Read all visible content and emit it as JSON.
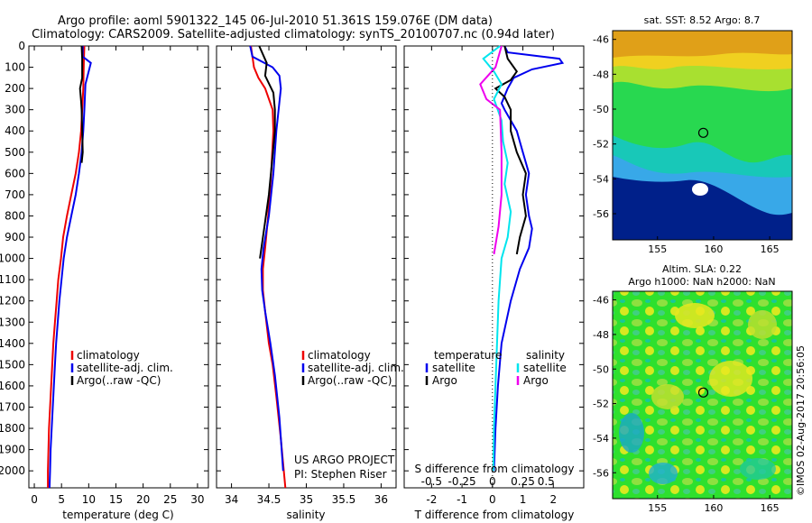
{
  "title_line1": "Argo profile: aoml 5901322_145 06-Jul-2010 51.361S 159.076E (DM data)",
  "title_line2": "Climatology: CARS2009. Satellite-adjusted climatology: synTS_20100707.nc (0.94d later)",
  "stamp": "©IMOS 02-Aug-2017 20:56:05",
  "colors": {
    "climatology": "#ee0000",
    "satellite": "#0000ee",
    "argo": "#000000",
    "sal_satellite": "#00e5ee",
    "sal_argo": "#ee00ee"
  },
  "chart_data": [
    {
      "type": "line",
      "xlabel": "temperature (deg C)",
      "ylabel": "",
      "xlim": [
        -1,
        32
      ],
      "ylim": [
        2080,
        0
      ],
      "xticks": [
        0,
        5,
        10,
        15,
        20,
        25,
        30
      ],
      "yticks": [
        0,
        100,
        200,
        300,
        400,
        500,
        600,
        700,
        800,
        900,
        1000,
        1100,
        1200,
        1300,
        1400,
        1500,
        1600,
        1700,
        1800,
        1900,
        2000
      ],
      "legend": [
        "climatology",
        "satellite-adj. clim.",
        "Argo(..raw -QC)"
      ],
      "legend_position": "lower-middle",
      "series": [
        {
          "name": "climatology",
          "color": "#ee0000",
          "points": [
            [
              9.2,
              0
            ],
            [
              9.1,
              80
            ],
            [
              9.0,
              200
            ],
            [
              8.8,
              300
            ],
            [
              8.6,
              400
            ],
            [
              8.2,
              500
            ],
            [
              7.6,
              600
            ],
            [
              6.8,
              700
            ],
            [
              6.0,
              800
            ],
            [
              5.3,
              900
            ],
            [
              4.9,
              1000
            ],
            [
              4.4,
              1100
            ],
            [
              4.1,
              1200
            ],
            [
              3.8,
              1300
            ],
            [
              3.5,
              1400
            ],
            [
              3.3,
              1500
            ],
            [
              3.1,
              1600
            ],
            [
              2.9,
              1700
            ],
            [
              2.7,
              1800
            ],
            [
              2.6,
              1900
            ],
            [
              2.5,
              2000
            ],
            [
              2.5,
              2080
            ]
          ]
        },
        {
          "name": "satellite-adj. clim.",
          "color": "#0000ee",
          "points": [
            [
              8.9,
              0
            ],
            [
              8.9,
              50
            ],
            [
              10.4,
              80
            ],
            [
              10.1,
              110
            ],
            [
              9.4,
              180
            ],
            [
              9.2,
              300
            ],
            [
              9.0,
              400
            ],
            [
              8.7,
              500
            ],
            [
              8.2,
              600
            ],
            [
              7.6,
              700
            ],
            [
              6.8,
              800
            ],
            [
              6.0,
              900
            ],
            [
              5.4,
              1000
            ],
            [
              5.0,
              1100
            ],
            [
              4.6,
              1200
            ],
            [
              4.3,
              1300
            ],
            [
              4.0,
              1400
            ],
            [
              3.8,
              1500
            ],
            [
              3.6,
              1600
            ],
            [
              3.4,
              1700
            ],
            [
              3.2,
              1800
            ],
            [
              3.0,
              1900
            ],
            [
              2.9,
              2000
            ],
            [
              2.8,
              2080
            ]
          ]
        },
        {
          "name": "Argo(..raw -QC)",
          "color": "#000000",
          "points": [
            [
              8.7,
              0
            ],
            [
              8.8,
              60
            ],
            [
              8.8,
              150
            ],
            [
              8.4,
              200
            ],
            [
              8.6,
              260
            ],
            [
              8.7,
              300
            ],
            [
              8.8,
              400
            ],
            [
              8.9,
              500
            ],
            [
              8.7,
              550
            ]
          ]
        }
      ]
    },
    {
      "type": "line",
      "xlabel": "salinity",
      "xlim": [
        33.8,
        36.2
      ],
      "ylim": [
        2080,
        0
      ],
      "xticks": [
        34,
        34.5,
        35,
        35.5,
        36
      ],
      "legend": [
        "climatology",
        "satellite-adj. clim.",
        "Argo(..raw -QC)"
      ],
      "legend_position": "lower-right",
      "annotation": [
        "US ARGO PROJECT",
        "PI: Stephen Riser"
      ],
      "series": [
        {
          "name": "climatology",
          "color": "#ee0000",
          "points": [
            [
              34.26,
              0
            ],
            [
              34.3,
              100
            ],
            [
              34.36,
              150
            ],
            [
              34.45,
              200
            ],
            [
              34.55,
              300
            ],
            [
              34.56,
              400
            ],
            [
              34.53,
              600
            ],
            [
              34.49,
              800
            ],
            [
              34.45,
              950
            ],
            [
              34.42,
              1050
            ],
            [
              34.42,
              1150
            ],
            [
              34.45,
              1250
            ],
            [
              34.5,
              1400
            ],
            [
              34.55,
              1500
            ],
            [
              34.6,
              1650
            ],
            [
              34.66,
              1850
            ],
            [
              34.72,
              2080
            ]
          ]
        },
        {
          "name": "satellite-adj. clim.",
          "color": "#0000ee",
          "points": [
            [
              34.25,
              0
            ],
            [
              34.28,
              50
            ],
            [
              34.55,
              100
            ],
            [
              34.64,
              140
            ],
            [
              34.66,
              200
            ],
            [
              34.63,
              300
            ],
            [
              34.6,
              400
            ],
            [
              34.56,
              600
            ],
            [
              34.5,
              800
            ],
            [
              34.43,
              950
            ],
            [
              34.4,
              1050
            ],
            [
              34.41,
              1150
            ],
            [
              34.45,
              1250
            ],
            [
              34.52,
              1400
            ],
            [
              34.58,
              1550
            ],
            [
              34.64,
              1750
            ],
            [
              34.68,
              1950
            ],
            [
              34.69,
              2000
            ]
          ]
        },
        {
          "name": "Argo(..raw -QC)",
          "color": "#000000",
          "points": [
            [
              34.37,
              0
            ],
            [
              34.47,
              80
            ],
            [
              34.45,
              140
            ],
            [
              34.56,
              220
            ],
            [
              34.58,
              300
            ],
            [
              34.58,
              400
            ],
            [
              34.54,
              550
            ],
            [
              34.5,
              700
            ],
            [
              34.44,
              850
            ],
            [
              34.38,
              1000
            ]
          ]
        }
      ]
    },
    {
      "type": "line",
      "xlabel": "T difference from climatology",
      "xlabel_top": "S difference from climatology",
      "xlim": [
        -2.9,
        3.0
      ],
      "ylim": [
        2080,
        0
      ],
      "xticks": [
        -2,
        -1,
        0,
        1,
        2
      ],
      "xticks_top": [
        "-0.5",
        "-0.25",
        "0",
        "0.25",
        "0.5"
      ],
      "legend": [
        "temperature",
        "salinity",
        "satellite",
        "Argo",
        "satellite",
        "Argo"
      ],
      "legend_position": "lower-middle",
      "series": [
        {
          "name": "T satellite",
          "color": "#0000ee",
          "points": [
            [
              0.4,
              0
            ],
            [
              0.5,
              30
            ],
            [
              2.2,
              60
            ],
            [
              2.3,
              80
            ],
            [
              1.3,
              110
            ],
            [
              0.7,
              150
            ],
            [
              0.5,
              200
            ],
            [
              0.3,
              270
            ],
            [
              0.4,
              300
            ],
            [
              0.8,
              400
            ],
            [
              1.0,
              500
            ],
            [
              1.2,
              600
            ],
            [
              1.1,
              700
            ],
            [
              1.2,
              800
            ],
            [
              1.3,
              860
            ],
            [
              1.2,
              950
            ],
            [
              0.9,
              1050
            ],
            [
              0.6,
              1200
            ],
            [
              0.3,
              1400
            ],
            [
              0.18,
              1600
            ],
            [
              0.1,
              1800
            ],
            [
              0.05,
              2000
            ]
          ]
        },
        {
          "name": "T Argo",
          "color": "#000000",
          "points": [
            [
              0.4,
              0
            ],
            [
              0.5,
              60
            ],
            [
              0.8,
              120
            ],
            [
              0.6,
              160
            ],
            [
              0.1,
              200
            ],
            [
              0.4,
              240
            ],
            [
              0.6,
              300
            ],
            [
              0.6,
              400
            ],
            [
              0.8,
              500
            ],
            [
              1.1,
              600
            ],
            [
              1.0,
              700
            ],
            [
              1.1,
              800
            ],
            [
              0.9,
              900
            ],
            [
              0.8,
              980
            ]
          ]
        },
        {
          "name": "S satellite",
          "color": "#00e5ee",
          "points": [
            [
              0.25,
              0
            ],
            [
              -0.3,
              60
            ],
            [
              0.05,
              120
            ],
            [
              0.3,
              180
            ],
            [
              0.05,
              250
            ],
            [
              0.3,
              350
            ],
            [
              0.35,
              450
            ],
            [
              0.5,
              550
            ],
            [
              0.4,
              650
            ],
            [
              0.6,
              780
            ],
            [
              0.5,
              900
            ],
            [
              0.3,
              1000
            ],
            [
              0.2,
              1200
            ],
            [
              0.15,
              1400
            ],
            [
              0.1,
              1600
            ],
            [
              0.05,
              1800
            ],
            [
              0.03,
              2000
            ]
          ]
        },
        {
          "name": "S Argo",
          "color": "#ee00ee",
          "points": [
            [
              0.3,
              0
            ],
            [
              0.1,
              100
            ],
            [
              -0.4,
              180
            ],
            [
              -0.2,
              250
            ],
            [
              0.25,
              300
            ],
            [
              0.3,
              500
            ],
            [
              0.3,
              700
            ],
            [
              0.2,
              850
            ],
            [
              0.05,
              980
            ]
          ]
        }
      ]
    },
    {
      "type": "heatmap",
      "title": "sat. SST: 8.52 Argo: 8.7",
      "xlim": [
        151,
        167
      ],
      "ylim": [
        -57.5,
        -45.5
      ],
      "xticks": [
        155,
        160,
        165
      ],
      "yticks": [
        -46,
        -48,
        -50,
        -52,
        -54,
        -56
      ],
      "marker": [
        159.08,
        -51.36
      ]
    },
    {
      "type": "heatmap",
      "title": "Altim. SLA: 0.22",
      "subtitle": "Argo h1000: NaN h2000: NaN",
      "xlim": [
        151,
        167
      ],
      "ylim": [
        -57.5,
        -45.5
      ],
      "xticks": [
        155,
        160,
        165
      ],
      "yticks": [
        -46,
        -48,
        -50,
        -52,
        -54,
        -56
      ],
      "marker": [
        159.08,
        -51.36
      ]
    }
  ]
}
